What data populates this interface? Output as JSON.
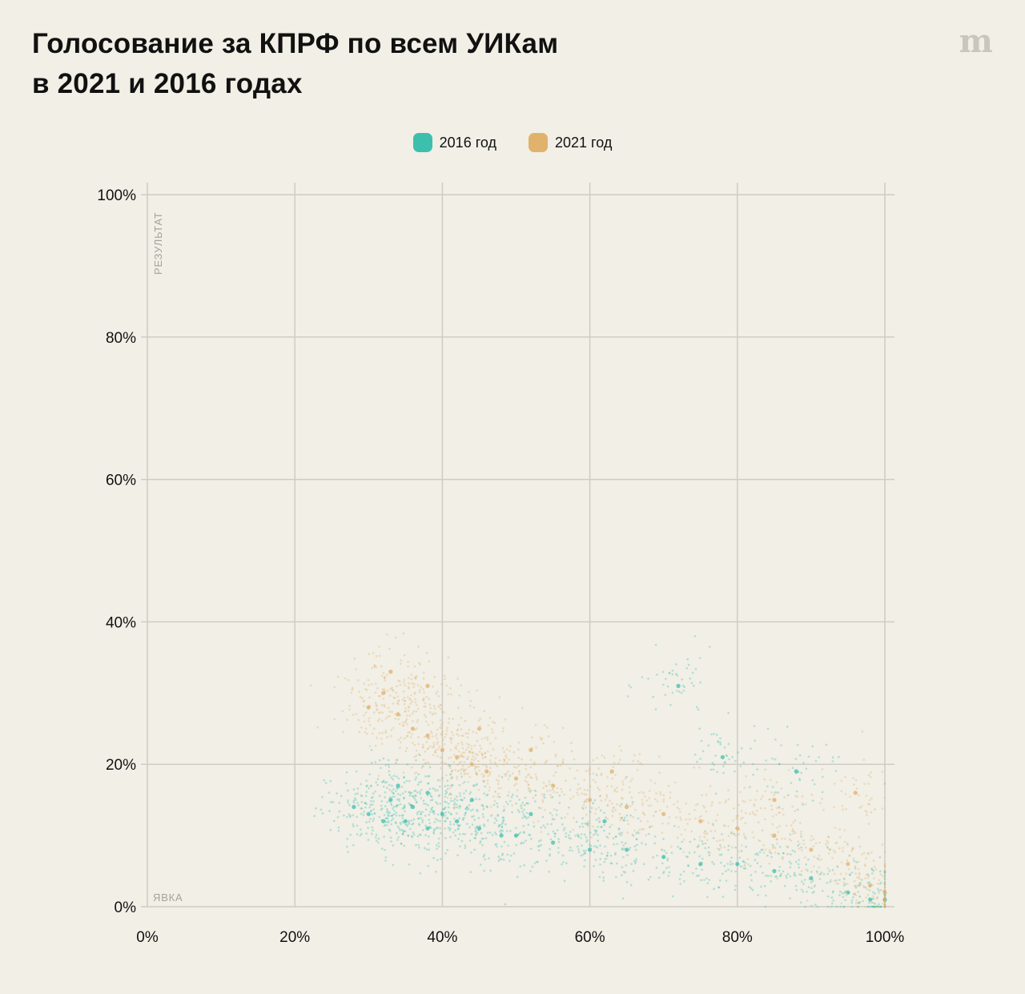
{
  "header": {
    "title_line1": "Голосование за КПРФ по всем УИКам",
    "title_line2": "в 2021 и 2016 годах",
    "logo": "m"
  },
  "chart_data": {
    "type": "scatter",
    "title": "Голосование за КПРФ по всем УИКам в 2021 и 2016 годах",
    "xlabel": "ЯВКА",
    "ylabel": "РЕЗУЛЬТАТ",
    "xlim": [
      0,
      100
    ],
    "ylim": [
      0,
      100
    ],
    "x_ticks": [
      "0%",
      "20%",
      "40%",
      "60%",
      "80%",
      "100%"
    ],
    "y_ticks": [
      "0%",
      "20%",
      "40%",
      "60%",
      "80%",
      "100%"
    ],
    "grid": true,
    "legend_position": "top-center",
    "series": [
      {
        "name": "2016 год",
        "color": "#3dbfae",
        "points": [
          [
            28,
            14
          ],
          [
            30,
            13
          ],
          [
            32,
            12
          ],
          [
            33,
            15
          ],
          [
            35,
            12
          ],
          [
            36,
            14
          ],
          [
            38,
            11
          ],
          [
            40,
            13
          ],
          [
            42,
            12
          ],
          [
            45,
            11
          ],
          [
            48,
            10
          ],
          [
            50,
            10
          ],
          [
            55,
            9
          ],
          [
            60,
            8
          ],
          [
            65,
            8
          ],
          [
            70,
            7
          ],
          [
            75,
            6
          ],
          [
            80,
            6
          ],
          [
            85,
            5
          ],
          [
            90,
            4
          ],
          [
            95,
            2
          ],
          [
            98,
            1
          ],
          [
            100,
            1
          ],
          [
            34,
            17
          ],
          [
            38,
            16
          ],
          [
            44,
            15
          ],
          [
            52,
            13
          ],
          [
            62,
            12
          ],
          [
            72,
            31
          ],
          [
            78,
            21
          ],
          [
            88,
            19
          ]
        ]
      },
      {
        "name": "2021 год",
        "color": "#e0b26b",
        "points": [
          [
            30,
            28
          ],
          [
            32,
            30
          ],
          [
            34,
            27
          ],
          [
            36,
            25
          ],
          [
            38,
            24
          ],
          [
            40,
            22
          ],
          [
            42,
            21
          ],
          [
            44,
            20
          ],
          [
            46,
            19
          ],
          [
            50,
            18
          ],
          [
            55,
            17
          ],
          [
            60,
            15
          ],
          [
            65,
            14
          ],
          [
            70,
            13
          ],
          [
            75,
            12
          ],
          [
            80,
            11
          ],
          [
            85,
            10
          ],
          [
            90,
            8
          ],
          [
            95,
            6
          ],
          [
            96,
            16
          ],
          [
            98,
            3
          ],
          [
            100,
            2
          ],
          [
            33,
            33
          ],
          [
            38,
            31
          ],
          [
            45,
            25
          ],
          [
            52,
            22
          ],
          [
            63,
            19
          ],
          [
            85,
            15
          ]
        ]
      }
    ]
  }
}
